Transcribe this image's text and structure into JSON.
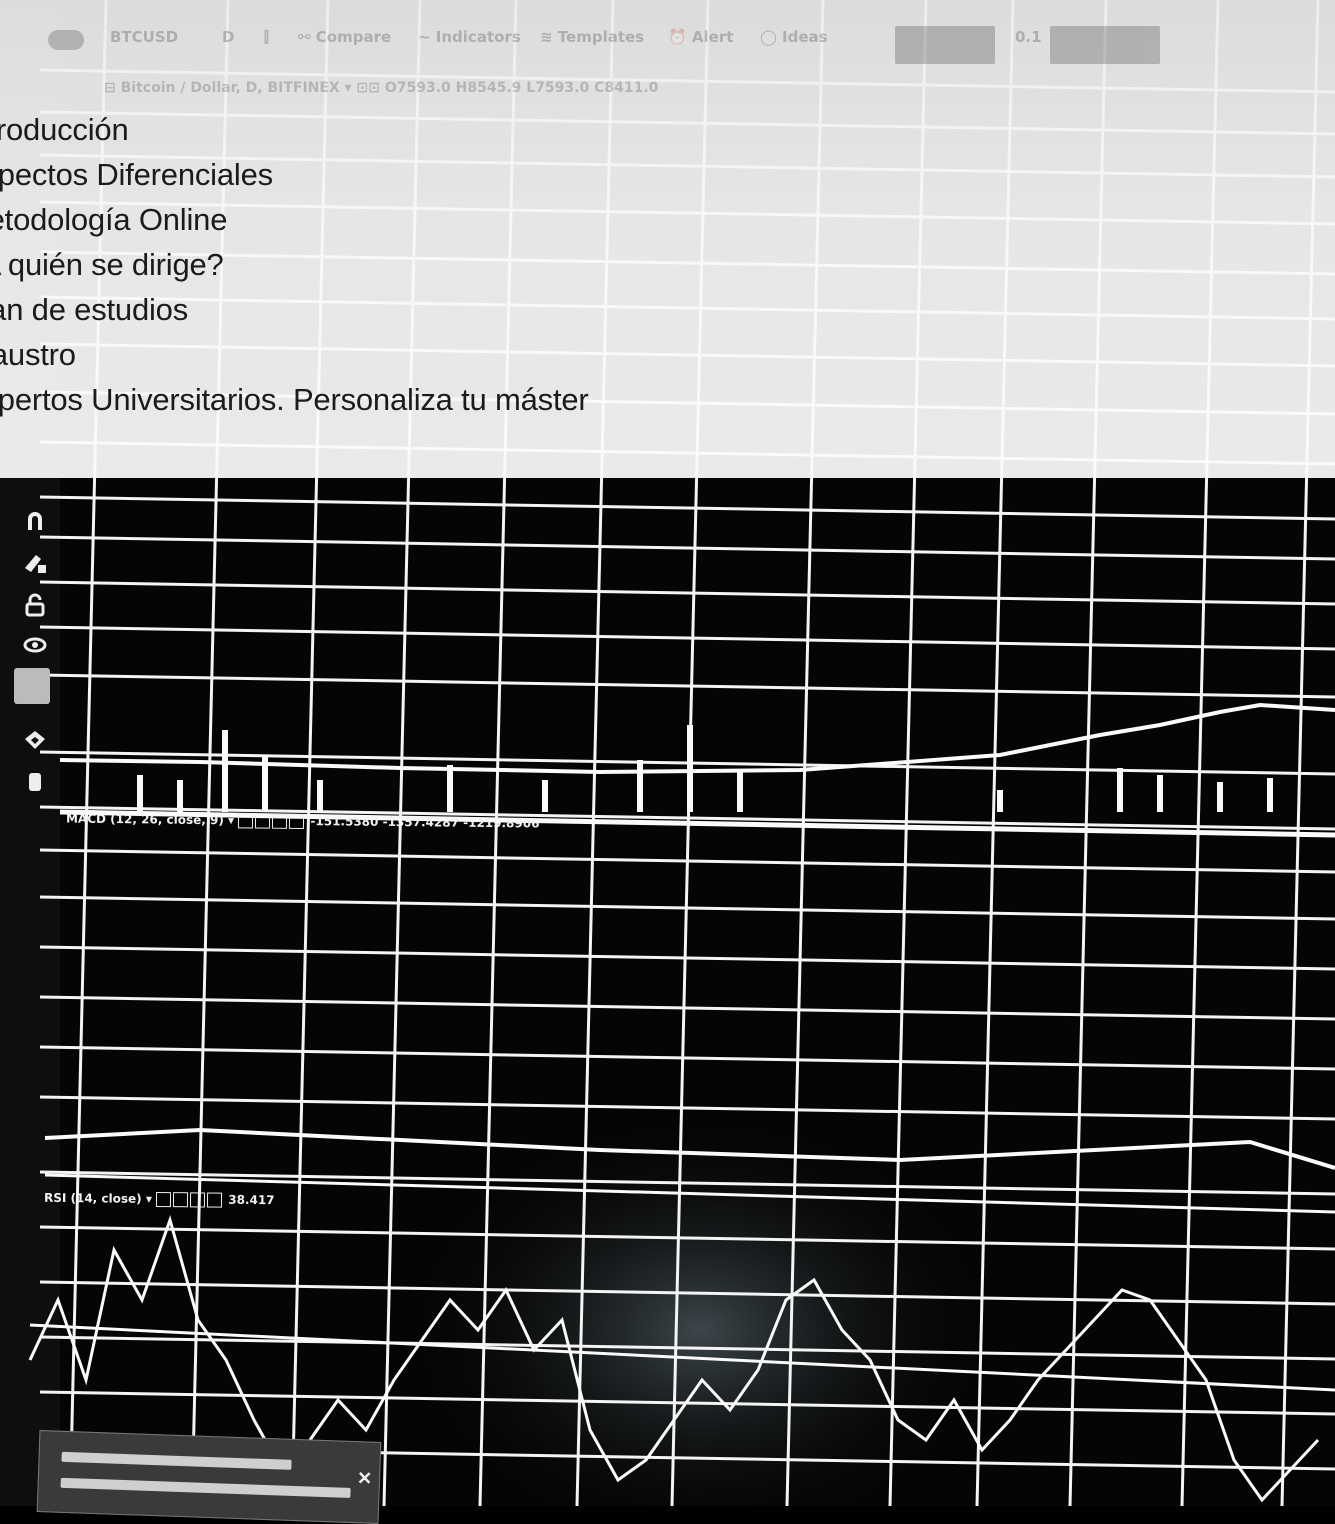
{
  "menu": {
    "items": [
      {
        "label": "Introducción"
      },
      {
        "label": "Aspectos Diferenciales"
      },
      {
        "label": "Metodología Online"
      },
      {
        "label": "¿A quién se dirige?"
      },
      {
        "label": "Plan de estudios"
      },
      {
        "label": "Claustro"
      },
      {
        "label": "Expertos Universitarios. Personaliza tu máster"
      }
    ]
  },
  "toolbar": {
    "symbol": "BTCUSD",
    "interval": "D",
    "compare": "Compare",
    "indicators": "Indicators",
    "templates": "Templates",
    "alert": "Alert",
    "ideas": "Ideas",
    "spread": "0.1"
  },
  "chart_header": {
    "pair": "Bitcoin / Dollar, D, BITFINEX",
    "ohlc": "O7593.0 H8545.9 L7593.0 C8411.0"
  },
  "indicators": {
    "macd_label": "MACD (12, 26, close, 9)",
    "macd_values": [
      "-151.5380",
      "-1357.4287",
      "-1219.8906"
    ],
    "rsi_label": "RSI (14, close)",
    "rsi_value": "38.417"
  },
  "colors": {
    "menu_text": "#1b1b1b",
    "wash": "#f7f7f7",
    "chart_bg": "#000000",
    "grid": "#ffffff"
  }
}
